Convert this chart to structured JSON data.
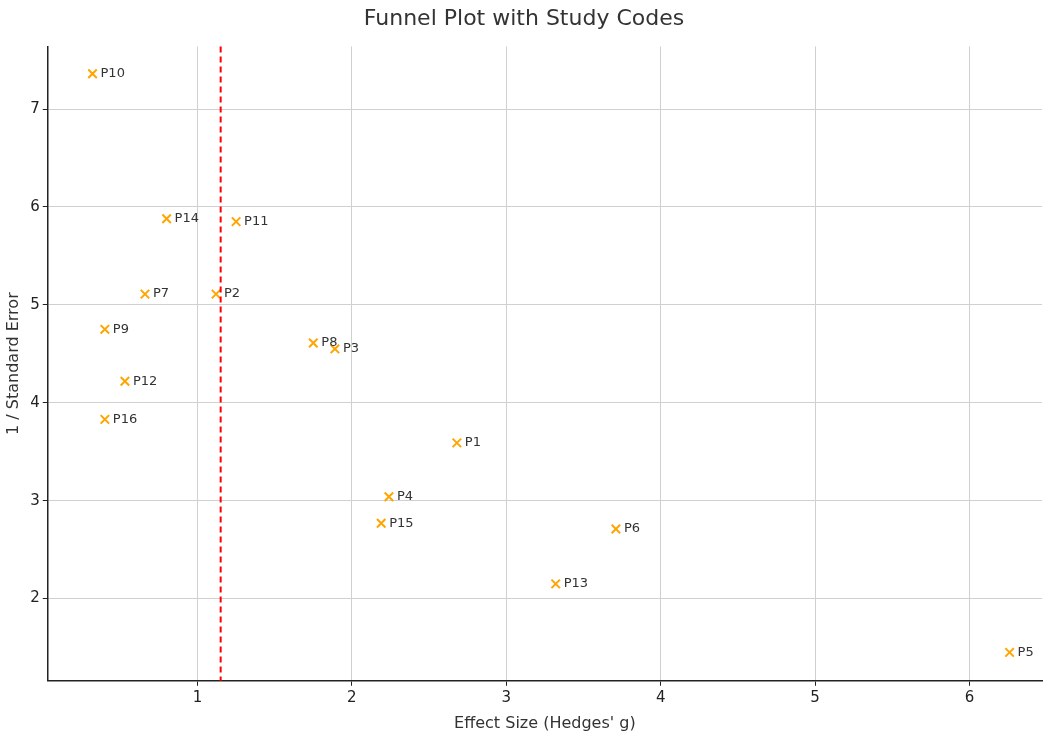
{
  "chart_data": {
    "type": "scatter",
    "title": "Funnel Plot with Study Codes",
    "xlabel": "Effect Size (Hedges' g)",
    "ylabel": "1 / Standard Error",
    "x": [
      0.32,
      0.8,
      1.25,
      0.66,
      1.12,
      0.4,
      1.75,
      1.89,
      0.53,
      0.4,
      2.68,
      2.24,
      2.19,
      3.71,
      3.32,
      6.26
    ],
    "series": [
      {
        "color": "#ffa500",
        "values": [
          7.36,
          5.88,
          5.85,
          5.11,
          5.11,
          4.75,
          4.61,
          4.55,
          4.22,
          3.83,
          3.59,
          3.04,
          2.77,
          2.71,
          2.15,
          1.45
        ]
      }
    ],
    "xlim": [
      0.03,
      6.47
    ],
    "ylim": [
      1.16,
      7.64
    ],
    "xticks": [
      1,
      2,
      3,
      4,
      5,
      6
    ],
    "yticks": [
      2,
      3,
      4,
      5,
      6,
      7
    ],
    "marker": "cross",
    "grid": true,
    "legend": false,
    "ref_lines": [
      {
        "axis": "x",
        "value": 1.15,
        "color": "#ff0000",
        "line_style": "dashed"
      }
    ],
    "annotations": [
      {
        "text": "P10",
        "x": 0.32,
        "y": 7.36
      },
      {
        "text": "P14",
        "x": 0.8,
        "y": 5.88
      },
      {
        "text": "P11",
        "x": 1.25,
        "y": 5.85
      },
      {
        "text": "P7",
        "x": 0.66,
        "y": 5.11
      },
      {
        "text": "P2",
        "x": 1.12,
        "y": 5.11
      },
      {
        "text": "P9",
        "x": 0.4,
        "y": 4.75
      },
      {
        "text": "P8",
        "x": 1.75,
        "y": 4.61
      },
      {
        "text": "P3",
        "x": 1.89,
        "y": 4.55
      },
      {
        "text": "P12",
        "x": 0.53,
        "y": 4.22
      },
      {
        "text": "P16",
        "x": 0.4,
        "y": 3.83
      },
      {
        "text": "P1",
        "x": 2.68,
        "y": 3.59
      },
      {
        "text": "P4",
        "x": 2.24,
        "y": 3.04
      },
      {
        "text": "P15",
        "x": 2.19,
        "y": 2.77
      },
      {
        "text": "P6",
        "x": 3.71,
        "y": 2.71
      },
      {
        "text": "P13",
        "x": 3.32,
        "y": 2.15
      },
      {
        "text": "P5",
        "x": 6.26,
        "y": 1.45
      }
    ]
  }
}
